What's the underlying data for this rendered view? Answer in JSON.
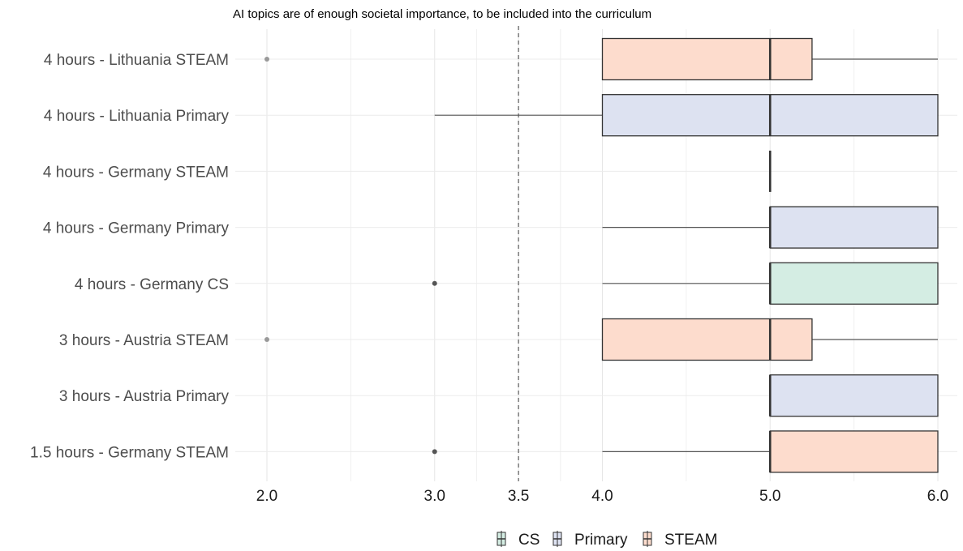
{
  "chart_data": {
    "type": "boxplot",
    "title": "AI topics are of enough societal importance, to be included into the curriculum",
    "xlabel": "",
    "ylabel": "",
    "xlim": [
      1.9,
      6.1
    ],
    "xticks": [
      2.0,
      3.0,
      3.5,
      4.0,
      5.0,
      6.0
    ],
    "xtick_labels": [
      "2.0",
      "3.0",
      "3.5",
      "4.0",
      "5.0",
      "6.0"
    ],
    "reference_line": 3.5,
    "grid": true,
    "legend_position": "bottom",
    "legend": [
      {
        "label": "CS",
        "color": "#d4ede3"
      },
      {
        "label": "Primary",
        "color": "#dde2f1"
      },
      {
        "label": "STEAM",
        "color": "#fddccd"
      }
    ],
    "series": [
      {
        "label": "4 hours - Lithuania STEAM",
        "group": "STEAM",
        "whisker_low": 4.0,
        "q1": 4.0,
        "median": 5.0,
        "q3": 5.25,
        "whisker_high": 6.0,
        "outliers": [
          2.0
        ]
      },
      {
        "label": "4 hours - Lithuania Primary",
        "group": "Primary",
        "whisker_low": 3.0,
        "q1": 4.0,
        "median": 5.0,
        "q3": 6.0,
        "whisker_high": 6.0,
        "outliers": []
      },
      {
        "label": "4 hours - Germany STEAM",
        "group": "STEAM",
        "whisker_low": 5.0,
        "q1": 5.0,
        "median": 5.0,
        "q3": 5.0,
        "whisker_high": 5.0,
        "outliers": []
      },
      {
        "label": "4 hours - Germany Primary",
        "group": "Primary",
        "whisker_low": 4.0,
        "q1": 5.0,
        "median": 5.0,
        "q3": 6.0,
        "whisker_high": 6.0,
        "outliers": []
      },
      {
        "label": "4 hours - Germany CS",
        "group": "CS",
        "whisker_low": 4.0,
        "q1": 5.0,
        "median": 5.0,
        "q3": 6.0,
        "whisker_high": 6.0,
        "outliers": [
          3.0
        ]
      },
      {
        "label": "3 hours - Austria STEAM",
        "group": "STEAM",
        "whisker_low": 4.0,
        "q1": 4.0,
        "median": 5.0,
        "q3": 5.25,
        "whisker_high": 6.0,
        "outliers": [
          2.0
        ]
      },
      {
        "label": "3 hours - Austria Primary",
        "group": "Primary",
        "whisker_low": 5.0,
        "q1": 5.0,
        "median": 5.0,
        "q3": 6.0,
        "whisker_high": 6.0,
        "outliers": []
      },
      {
        "label": "1.5 hours - Germany STEAM",
        "group": "STEAM",
        "whisker_low": 4.0,
        "q1": 5.0,
        "median": 5.0,
        "q3": 6.0,
        "whisker_high": 6.0,
        "outliers": [
          3.0
        ]
      }
    ]
  }
}
